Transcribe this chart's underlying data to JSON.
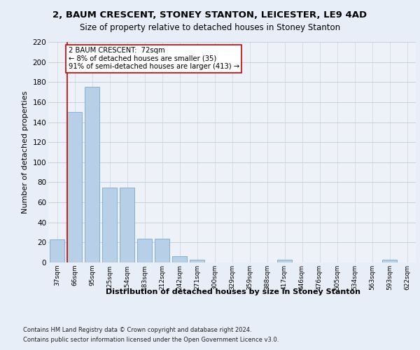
{
  "title_line1": "2, BAUM CRESCENT, STONEY STANTON, LEICESTER, LE9 4AD",
  "title_line2": "Size of property relative to detached houses in Stoney Stanton",
  "xlabel": "Distribution of detached houses by size in Stoney Stanton",
  "ylabel": "Number of detached properties",
  "categories": [
    "37sqm",
    "66sqm",
    "95sqm",
    "125sqm",
    "154sqm",
    "183sqm",
    "212sqm",
    "242sqm",
    "271sqm",
    "300sqm",
    "329sqm",
    "359sqm",
    "388sqm",
    "417sqm",
    "446sqm",
    "476sqm",
    "505sqm",
    "534sqm",
    "563sqm",
    "593sqm",
    "622sqm"
  ],
  "values": [
    23,
    150,
    175,
    75,
    75,
    24,
    24,
    6,
    3,
    0,
    0,
    0,
    0,
    3,
    0,
    0,
    0,
    0,
    0,
    3,
    0
  ],
  "bar_color": "#b8cfe8",
  "bar_edge_color": "#7aaad0",
  "marker_color": "#cc0000",
  "annotation_title": "2 BAUM CRESCENT:  72sqm",
  "annotation_line2": "← 8% of detached houses are smaller (35)",
  "annotation_line3": "91% of semi-detached houses are larger (413) →",
  "annotation_box_color": "#ffffff",
  "annotation_box_edge": "#cc0000",
  "ylim": [
    0,
    220
  ],
  "yticks": [
    0,
    20,
    40,
    60,
    80,
    100,
    120,
    140,
    160,
    180,
    200,
    220
  ],
  "footnote1": "Contains HM Land Registry data © Crown copyright and database right 2024.",
  "footnote2": "Contains public sector information licensed under the Open Government Licence v3.0.",
  "bg_color": "#e8eef8",
  "plot_bg_color": "#eef2f8"
}
